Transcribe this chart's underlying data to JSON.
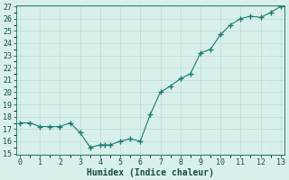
{
  "xlabel": "Humidex (Indice chaleur)",
  "x": [
    0,
    0.5,
    1,
    1.5,
    2,
    2.5,
    3,
    3.5,
    4,
    4.25,
    4.5,
    5,
    5.5,
    6,
    6.5,
    7,
    7.5,
    8,
    8.5,
    9,
    9.5,
    10,
    10.5,
    11,
    11.5,
    12,
    12.5,
    13
  ],
  "y": [
    17.5,
    17.5,
    17.2,
    17.2,
    17.2,
    17.5,
    16.7,
    15.5,
    15.7,
    15.7,
    15.7,
    16.0,
    16.2,
    16.0,
    18.2,
    20.0,
    20.5,
    21.1,
    21.5,
    23.2,
    23.5,
    24.7,
    25.5,
    26.0,
    26.2,
    26.1,
    26.5,
    27.0
  ],
  "ylim": [
    15,
    27
  ],
  "xlim": [
    -0.2,
    13.2
  ],
  "yticks": [
    15,
    16,
    17,
    18,
    19,
    20,
    21,
    22,
    23,
    24,
    25,
    26,
    27
  ],
  "xticks": [
    0,
    1,
    2,
    3,
    4,
    5,
    6,
    7,
    8,
    9,
    10,
    11,
    12,
    13
  ],
  "line_color": "#1a7a6e",
  "marker_color": "#1a7a6e",
  "bg_color": "#d8f0ec",
  "grid_color_major": "#c8dbd8",
  "grid_color_minor": "#ddecea",
  "tick_fontsize": 6,
  "label_fontsize": 7
}
